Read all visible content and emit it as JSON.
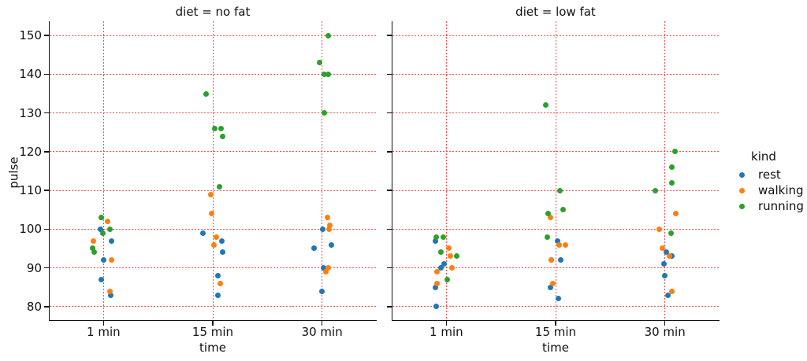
{
  "chart_data": {
    "type": "scatter",
    "subtype": "strip-plot-faceted",
    "xlabel": "time",
    "ylabel": "pulse",
    "x_categories": [
      "1 min",
      "15 min",
      "30 min"
    ],
    "yticks": [
      80,
      90,
      100,
      110,
      120,
      130,
      140,
      150
    ],
    "ylim": [
      76.3,
      153.7
    ],
    "grid": {
      "show": true,
      "color": "#fc2a2a",
      "style": "dotted",
      "horizontal": true,
      "vertical": true
    },
    "kinds": [
      {
        "name": "rest",
        "color": "#1f77b4"
      },
      {
        "name": "walking",
        "color": "#ff7f0e"
      },
      {
        "name": "running",
        "color": "#2ca02c"
      }
    ],
    "legend": {
      "title": "kind",
      "position": "right",
      "entries": [
        {
          "label": "rest",
          "color": "#1f77b4"
        },
        {
          "label": "walking",
          "color": "#ff7f0e"
        },
        {
          "label": "running",
          "color": "#2ca02c"
        }
      ]
    },
    "facets": [
      {
        "title": "diet = no fat",
        "series": [
          {
            "kind": "rest",
            "points": [
              [
                0,
                83,
                9
              ],
              [
                0,
                87,
                -3
              ],
              [
                0,
                92,
                0
              ],
              [
                0,
                97,
                10
              ],
              [
                0,
                100,
                -4
              ],
              [
                1,
                83,
                6
              ],
              [
                1,
                88,
                6
              ],
              [
                1,
                94,
                12
              ],
              [
                1,
                97,
                11
              ],
              [
                1,
                99,
                -13
              ],
              [
                2,
                84,
                0
              ],
              [
                2,
                90,
                2
              ],
              [
                2,
                95,
                -10
              ],
              [
                2,
                96,
                12
              ],
              [
                2,
                100,
                1
              ]
            ]
          },
          {
            "kind": "walking",
            "points": [
              [
                0,
                84,
                8
              ],
              [
                0,
                92,
                10
              ],
              [
                0,
                97,
                -13
              ],
              [
                0,
                102,
                5
              ],
              [
                0,
                103,
                -3
              ],
              [
                1,
                86,
                9
              ],
              [
                1,
                96,
                1
              ],
              [
                1,
                98,
                4
              ],
              [
                1,
                104,
                -2
              ],
              [
                1,
                109,
                -3
              ],
              [
                2,
                89,
                5
              ],
              [
                2,
                90,
                8
              ],
              [
                2,
                100,
                9
              ],
              [
                2,
                101,
                10
              ],
              [
                2,
                103,
                7
              ]
            ]
          },
          {
            "kind": "running",
            "points": [
              [
                0,
                94,
                -12
              ],
              [
                0,
                95,
                -14
              ],
              [
                0,
                99,
                -1
              ],
              [
                0,
                100,
                8
              ],
              [
                0,
                103,
                -3
              ],
              [
                1,
                111,
                8
              ],
              [
                1,
                124,
                12
              ],
              [
                1,
                126,
                2
              ],
              [
                1,
                126,
                10
              ],
              [
                1,
                135,
                -9
              ],
              [
                2,
                130,
                3
              ],
              [
                2,
                140,
                3
              ],
              [
                2,
                140,
                8
              ],
              [
                2,
                143,
                -3
              ],
              [
                2,
                150,
                8
              ]
            ]
          }
        ]
      },
      {
        "title": "diet = low fat",
        "series": [
          {
            "kind": "rest",
            "points": [
              [
                0,
                80,
                -13
              ],
              [
                0,
                85,
                -14
              ],
              [
                0,
                90,
                -7
              ],
              [
                0,
                91,
                -3
              ],
              [
                0,
                97,
                -14
              ],
              [
                1,
                82,
                3
              ],
              [
                1,
                85,
                -7
              ],
              [
                1,
                92,
                -6
              ],
              [
                1,
                92,
                6
              ],
              [
                1,
                97,
                2
              ],
              [
                2,
                83,
                4
              ],
              [
                2,
                88,
                0
              ],
              [
                2,
                91,
                -1
              ],
              [
                2,
                93,
                9
              ],
              [
                2,
                94,
                2
              ]
            ]
          },
          {
            "kind": "walking",
            "points": [
              [
                0,
                86,
                -12
              ],
              [
                0,
                89,
                -12
              ],
              [
                0,
                90,
                7
              ],
              [
                0,
                93,
                5
              ],
              [
                0,
                95,
                3
              ],
              [
                1,
                86,
                -4
              ],
              [
                1,
                92,
                -6
              ],
              [
                1,
                96,
                4
              ],
              [
                1,
                96,
                12
              ],
              [
                1,
                103,
                -7
              ],
              [
                2,
                84,
                9
              ],
              [
                2,
                93,
                6
              ],
              [
                2,
                95,
                -3
              ],
              [
                2,
                100,
                -7
              ],
              [
                2,
                104,
                14
              ]
            ]
          },
          {
            "kind": "running",
            "points": [
              [
                0,
                87,
                1
              ],
              [
                0,
                93,
                13
              ],
              [
                0,
                94,
                -7
              ],
              [
                0,
                98,
                -13
              ],
              [
                0,
                98,
                -4
              ],
              [
                1,
                98,
                -11
              ],
              [
                1,
                104,
                -10
              ],
              [
                1,
                105,
                9
              ],
              [
                1,
                110,
                5
              ],
              [
                1,
                132,
                -13
              ],
              [
                2,
                99,
                8
              ],
              [
                2,
                110,
                -12
              ],
              [
                2,
                112,
                9
              ],
              [
                2,
                116,
                9
              ],
              [
                2,
                120,
                13
              ]
            ]
          }
        ]
      }
    ]
  }
}
